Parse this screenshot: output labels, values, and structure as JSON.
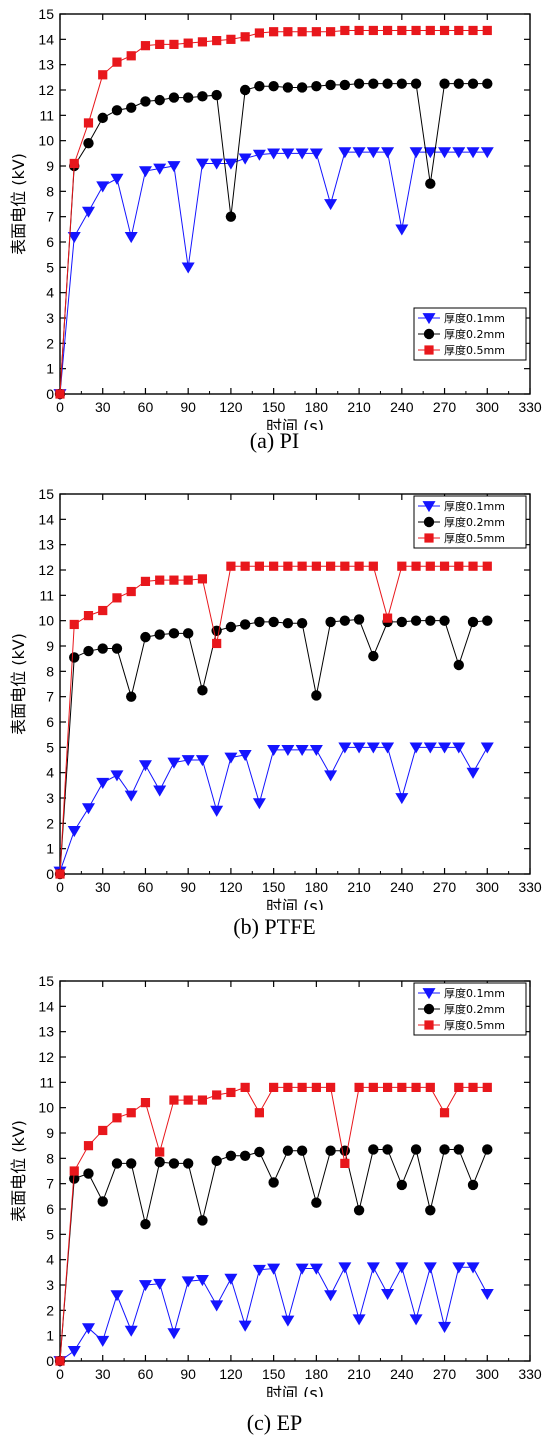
{
  "chart_data": [
    {
      "type": "line",
      "caption": "(a) PI",
      "xlabel": "时间 (s)",
      "ylabel": "表面电位 (kV)",
      "xlim": [
        0,
        330
      ],
      "ylim": [
        0,
        15
      ],
      "xticks": [
        0,
        30,
        60,
        90,
        120,
        150,
        180,
        210,
        240,
        270,
        300,
        330
      ],
      "yticks": [
        0,
        1,
        2,
        3,
        4,
        5,
        6,
        7,
        8,
        9,
        10,
        11,
        12,
        13,
        14,
        15
      ],
      "legend_position": "lower-right",
      "x": [
        0,
        10,
        20,
        30,
        40,
        50,
        60,
        70,
        80,
        90,
        100,
        110,
        120,
        130,
        140,
        150,
        160,
        170,
        180,
        190,
        200,
        210,
        220,
        230,
        240,
        250,
        260,
        270,
        280,
        290,
        300
      ],
      "series": [
        {
          "name": "厚度0.1mm",
          "color": "#1414ff",
          "marker": "triangle-down",
          "values": [
            0,
            6.2,
            7.2,
            8.2,
            8.5,
            6.2,
            8.8,
            8.9,
            9.0,
            5.0,
            9.1,
            9.1,
            9.1,
            9.3,
            9.45,
            9.5,
            9.5,
            9.5,
            9.5,
            7.5,
            9.55,
            9.55,
            9.55,
            9.55,
            6.5,
            9.55,
            9.55,
            9.55,
            9.55,
            9.55,
            9.55
          ]
        },
        {
          "name": "厚度0.2mm",
          "color": "#000000",
          "marker": "circle",
          "values": [
            0,
            9.0,
            9.9,
            10.9,
            11.2,
            11.3,
            11.55,
            11.6,
            11.7,
            11.7,
            11.75,
            11.8,
            7.0,
            12.0,
            12.15,
            12.15,
            12.1,
            12.1,
            12.15,
            12.2,
            12.2,
            12.25,
            12.25,
            12.25,
            12.25,
            12.25,
            8.3,
            12.25,
            12.25,
            12.25,
            12.25
          ]
        },
        {
          "name": "厚度0.5mm",
          "color": "#e8171c",
          "marker": "square",
          "values": [
            0,
            9.1,
            10.7,
            12.6,
            13.1,
            13.35,
            13.75,
            13.8,
            13.8,
            13.85,
            13.9,
            13.95,
            14.0,
            14.1,
            14.25,
            14.3,
            14.3,
            14.3,
            14.3,
            14.3,
            14.35,
            14.35,
            14.35,
            14.35,
            14.35,
            14.35,
            14.35,
            14.35,
            14.35,
            14.35,
            14.35
          ]
        }
      ]
    },
    {
      "type": "line",
      "caption": "(b) PTFE",
      "xlabel": "时间 (s)",
      "ylabel": "表面电位 (kV)",
      "xlim": [
        0,
        330
      ],
      "ylim": [
        0,
        15
      ],
      "xticks": [
        0,
        30,
        60,
        90,
        120,
        150,
        180,
        210,
        240,
        270,
        300,
        330
      ],
      "yticks": [
        0,
        1,
        2,
        3,
        4,
        5,
        6,
        7,
        8,
        9,
        10,
        11,
        12,
        13,
        14,
        15
      ],
      "legend_position": "top-right",
      "x": [
        0,
        10,
        20,
        30,
        40,
        50,
        60,
        70,
        80,
        90,
        100,
        110,
        120,
        130,
        140,
        150,
        160,
        170,
        180,
        190,
        200,
        210,
        220,
        230,
        240,
        250,
        260,
        270,
        280,
        290,
        300
      ],
      "series": [
        {
          "name": "厚度0.1mm",
          "color": "#1414ff",
          "marker": "triangle-down",
          "values": [
            0.1,
            1.7,
            2.6,
            3.6,
            3.9,
            3.1,
            4.3,
            3.3,
            4.4,
            4.5,
            4.5,
            2.5,
            4.6,
            4.7,
            2.8,
            4.9,
            4.9,
            4.9,
            4.9,
            3.9,
            5.0,
            5.0,
            5.0,
            5.0,
            3.0,
            5.0,
            5.0,
            5.0,
            5.0,
            4.0,
            5.0
          ]
        },
        {
          "name": "厚度0.2mm",
          "color": "#000000",
          "marker": "circle",
          "values": [
            0,
            8.55,
            8.8,
            8.9,
            8.9,
            7.0,
            9.35,
            9.45,
            9.5,
            9.5,
            7.25,
            9.6,
            9.75,
            9.85,
            9.95,
            9.95,
            9.9,
            9.9,
            7.05,
            9.95,
            10.0,
            10.05,
            8.6,
            9.95,
            9.95,
            10.0,
            10.0,
            10.0,
            8.25,
            9.95,
            10.0
          ]
        },
        {
          "name": "厚度0.5mm",
          "color": "#e8171c",
          "marker": "square",
          "values": [
            0,
            9.85,
            10.2,
            10.4,
            10.9,
            11.15,
            11.55,
            11.6,
            11.6,
            11.6,
            11.65,
            9.1,
            12.15,
            12.15,
            12.15,
            12.15,
            12.15,
            12.15,
            12.15,
            12.15,
            12.15,
            12.15,
            12.15,
            10.1,
            12.15,
            12.15,
            12.15,
            12.15,
            12.15,
            12.15,
            12.15
          ]
        }
      ]
    },
    {
      "type": "line",
      "caption": "(c) EP",
      "xlabel": "时间 (s)",
      "ylabel": "表面电位 (kV)",
      "xlim": [
        0,
        330
      ],
      "ylim": [
        0,
        15
      ],
      "xticks": [
        0,
        30,
        60,
        90,
        120,
        150,
        180,
        210,
        240,
        270,
        300,
        330
      ],
      "yticks": [
        0,
        1,
        2,
        3,
        4,
        5,
        6,
        7,
        8,
        9,
        10,
        11,
        12,
        13,
        14,
        15
      ],
      "legend_position": "top-right",
      "x": [
        0,
        10,
        20,
        30,
        40,
        50,
        60,
        70,
        80,
        90,
        100,
        110,
        120,
        130,
        140,
        150,
        160,
        170,
        180,
        190,
        200,
        210,
        220,
        230,
        240,
        250,
        260,
        270,
        280,
        290,
        300
      ],
      "series": [
        {
          "name": "厚度0.1mm",
          "color": "#1414ff",
          "marker": "triangle-down",
          "values": [
            0,
            0.4,
            1.3,
            0.8,
            2.6,
            1.2,
            3.0,
            3.05,
            1.1,
            3.15,
            3.2,
            2.2,
            3.25,
            1.4,
            3.6,
            3.65,
            1.6,
            3.65,
            3.65,
            2.6,
            3.7,
            1.65,
            3.7,
            2.65,
            3.7,
            1.65,
            3.7,
            1.35,
            3.7,
            3.7,
            2.65
          ]
        },
        {
          "name": "厚度0.2mm",
          "color": "#000000",
          "marker": "circle",
          "values": [
            0,
            7.2,
            7.4,
            6.3,
            7.8,
            7.8,
            5.4,
            7.85,
            7.8,
            7.8,
            5.55,
            7.9,
            8.1,
            8.1,
            8.25,
            7.05,
            8.3,
            8.3,
            6.25,
            8.3,
            8.3,
            5.95,
            8.35,
            8.35,
            6.95,
            8.35,
            5.95,
            8.35,
            8.35,
            6.95,
            8.35
          ]
        },
        {
          "name": "厚度0.5mm",
          "color": "#e8171c",
          "marker": "square",
          "values": [
            0,
            7.5,
            8.5,
            9.1,
            9.6,
            9.8,
            10.2,
            8.25,
            10.3,
            10.3,
            10.3,
            10.5,
            10.6,
            10.8,
            9.8,
            10.8,
            10.8,
            10.8,
            10.8,
            10.8,
            7.8,
            10.8,
            10.8,
            10.8,
            10.8,
            10.8,
            10.8,
            9.8,
            10.8,
            10.8,
            10.8
          ]
        }
      ]
    }
  ]
}
